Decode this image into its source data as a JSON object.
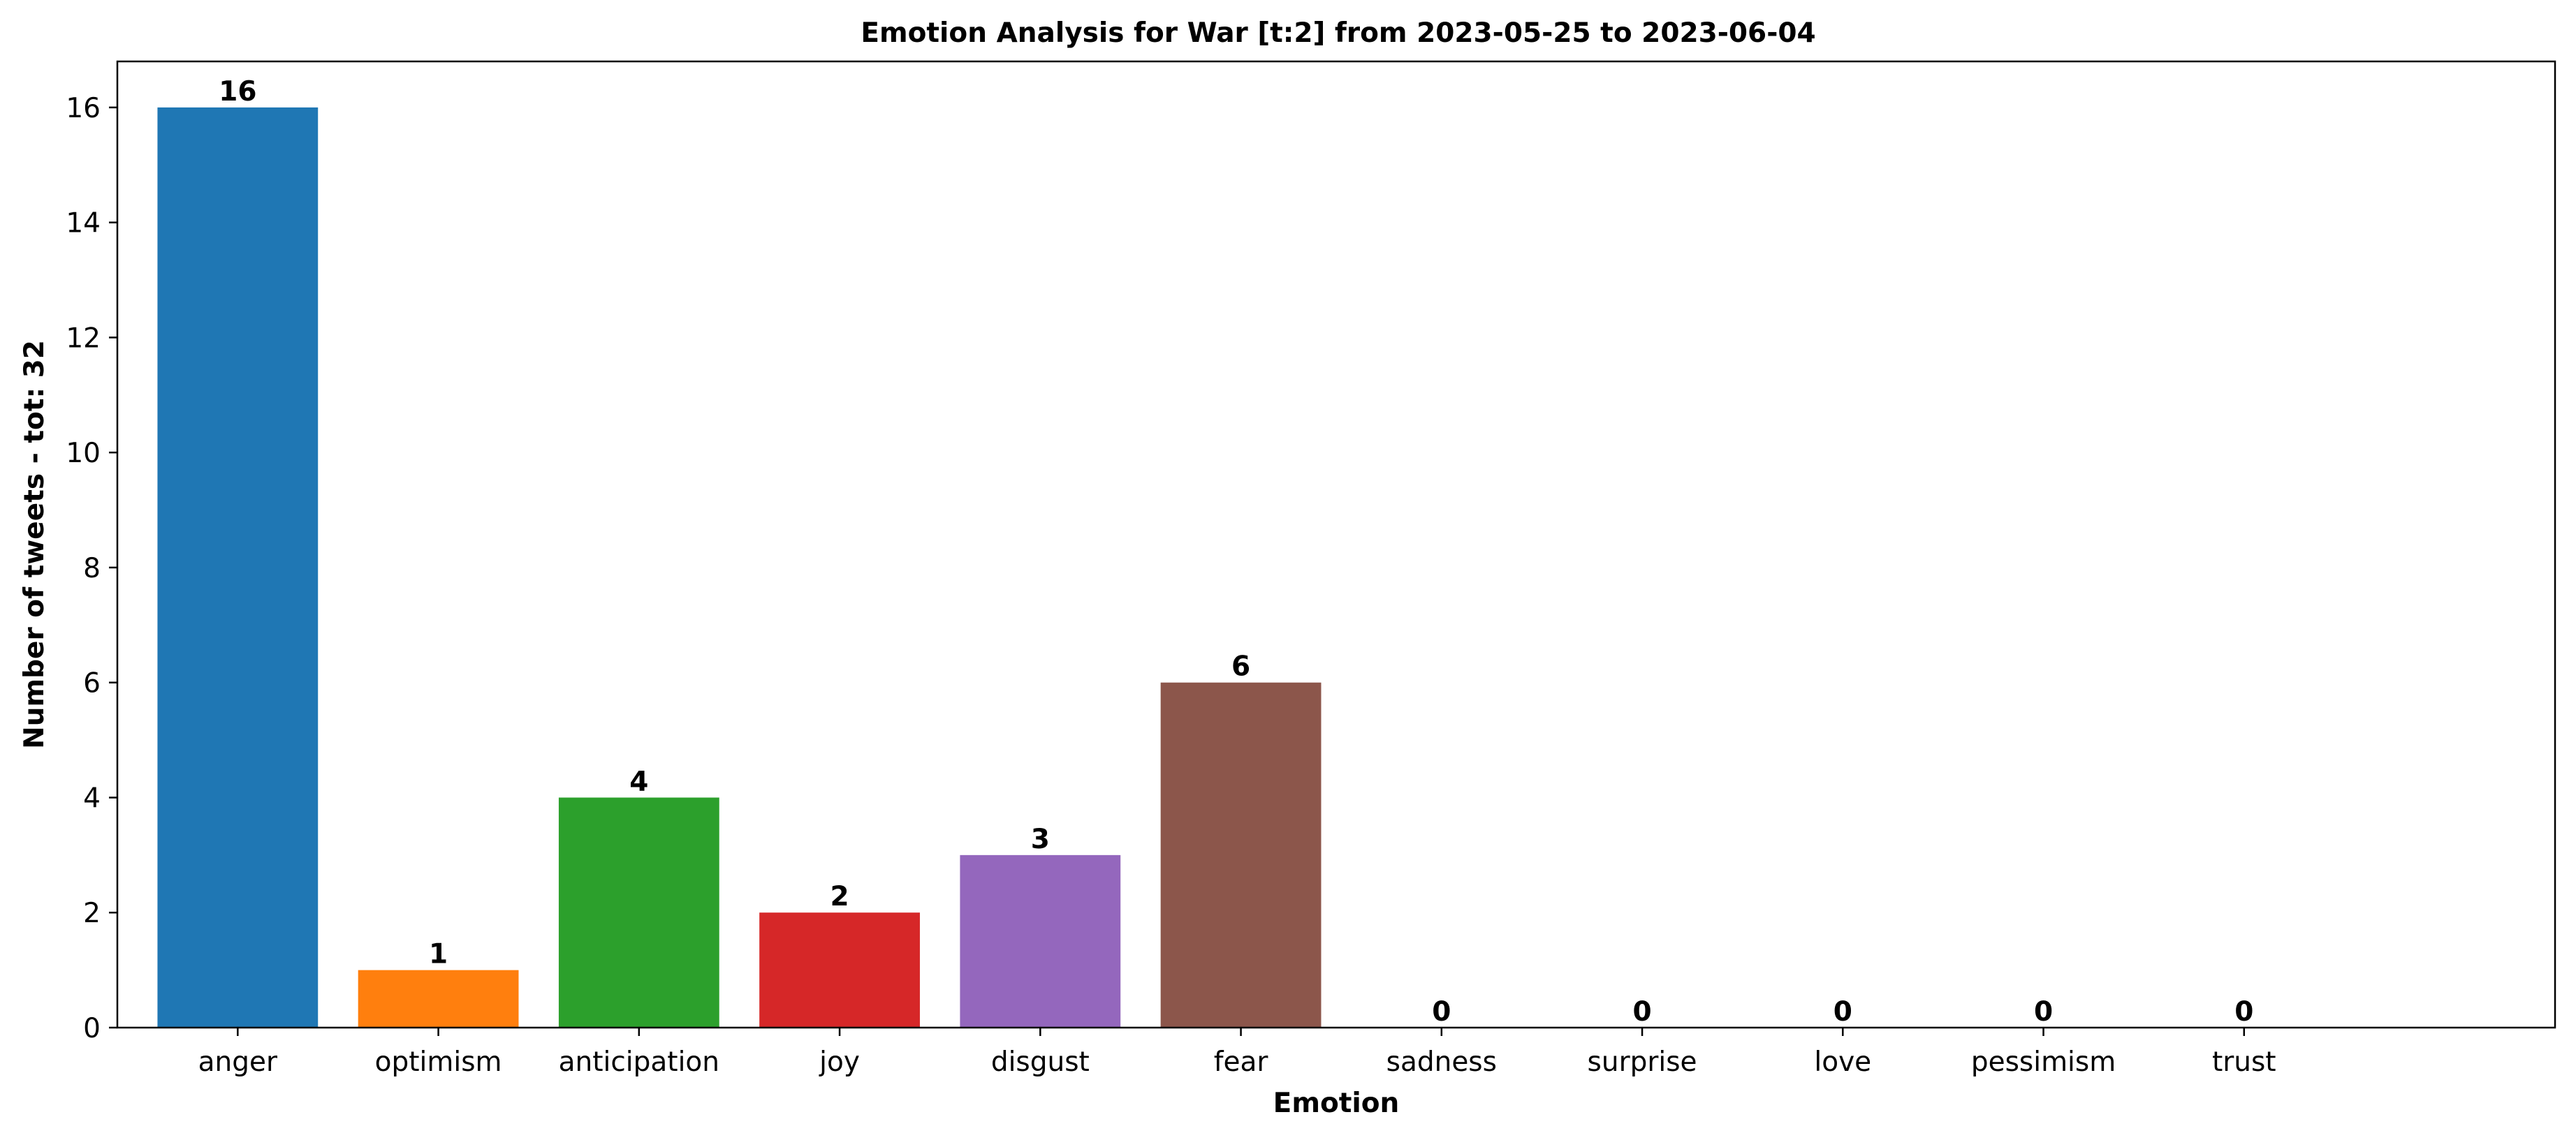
{
  "chart_data": {
    "type": "bar",
    "title": "Emotion Analysis for War [t:2] from 2023-05-25 to 2023-06-04",
    "xlabel": "Emotion",
    "ylabel": "Number of tweets - tot: 32",
    "categories": [
      "anger",
      "optimism",
      "anticipation",
      "joy",
      "disgust",
      "fear",
      "sadness",
      "surprise",
      "love",
      "pessimism",
      "trust"
    ],
    "values": [
      16,
      1,
      4,
      2,
      3,
      6,
      0,
      0,
      0,
      0,
      0
    ],
    "value_labels": [
      "16",
      "1",
      "4",
      "2",
      "3",
      "6",
      "0",
      "0",
      "0",
      "0",
      "0"
    ],
    "colors": [
      "#1f77b4",
      "#ff7f0e",
      "#2ca02c",
      "#d62728",
      "#9467bd",
      "#8c564b",
      "#e377c2",
      "#7f7f7f",
      "#bcbd22",
      "#17becf",
      "#1f77b4"
    ],
    "ylim": [
      0,
      16.8
    ],
    "yticks": [
      0,
      2,
      4,
      6,
      8,
      10,
      12,
      14,
      16
    ],
    "ytick_labels": [
      "0",
      "2",
      "4",
      "6",
      "8",
      "10",
      "12",
      "14",
      "16"
    ],
    "grid": false,
    "legend": "none"
  }
}
